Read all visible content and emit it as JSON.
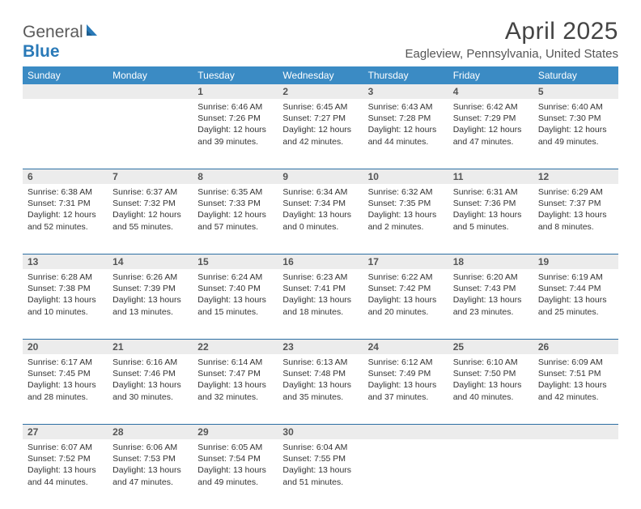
{
  "colors": {
    "header_bar": "#3b8bc4",
    "row_divider": "#2d6fa3",
    "daynum_bg": "#ececec",
    "text": "#333333",
    "title": "#444444",
    "location": "#555555",
    "logo_gray": "#5a5a5a",
    "logo_blue": "#2a7ab8"
  },
  "logo": {
    "part1": "General",
    "part2": "Blue"
  },
  "title": "April 2025",
  "location": "Eagleview, Pennsylvania, United States",
  "dow": [
    "Sunday",
    "Monday",
    "Tuesday",
    "Wednesday",
    "Thursday",
    "Friday",
    "Saturday"
  ],
  "weeks": [
    [
      null,
      null,
      {
        "n": "1",
        "sr": "Sunrise: 6:46 AM",
        "ss": "Sunset: 7:26 PM",
        "dl": "Daylight: 12 hours and 39 minutes."
      },
      {
        "n": "2",
        "sr": "Sunrise: 6:45 AM",
        "ss": "Sunset: 7:27 PM",
        "dl": "Daylight: 12 hours and 42 minutes."
      },
      {
        "n": "3",
        "sr": "Sunrise: 6:43 AM",
        "ss": "Sunset: 7:28 PM",
        "dl": "Daylight: 12 hours and 44 minutes."
      },
      {
        "n": "4",
        "sr": "Sunrise: 6:42 AM",
        "ss": "Sunset: 7:29 PM",
        "dl": "Daylight: 12 hours and 47 minutes."
      },
      {
        "n": "5",
        "sr": "Sunrise: 6:40 AM",
        "ss": "Sunset: 7:30 PM",
        "dl": "Daylight: 12 hours and 49 minutes."
      }
    ],
    [
      {
        "n": "6",
        "sr": "Sunrise: 6:38 AM",
        "ss": "Sunset: 7:31 PM",
        "dl": "Daylight: 12 hours and 52 minutes."
      },
      {
        "n": "7",
        "sr": "Sunrise: 6:37 AM",
        "ss": "Sunset: 7:32 PM",
        "dl": "Daylight: 12 hours and 55 minutes."
      },
      {
        "n": "8",
        "sr": "Sunrise: 6:35 AM",
        "ss": "Sunset: 7:33 PM",
        "dl": "Daylight: 12 hours and 57 minutes."
      },
      {
        "n": "9",
        "sr": "Sunrise: 6:34 AM",
        "ss": "Sunset: 7:34 PM",
        "dl": "Daylight: 13 hours and 0 minutes."
      },
      {
        "n": "10",
        "sr": "Sunrise: 6:32 AM",
        "ss": "Sunset: 7:35 PM",
        "dl": "Daylight: 13 hours and 2 minutes."
      },
      {
        "n": "11",
        "sr": "Sunrise: 6:31 AM",
        "ss": "Sunset: 7:36 PM",
        "dl": "Daylight: 13 hours and 5 minutes."
      },
      {
        "n": "12",
        "sr": "Sunrise: 6:29 AM",
        "ss": "Sunset: 7:37 PM",
        "dl": "Daylight: 13 hours and 8 minutes."
      }
    ],
    [
      {
        "n": "13",
        "sr": "Sunrise: 6:28 AM",
        "ss": "Sunset: 7:38 PM",
        "dl": "Daylight: 13 hours and 10 minutes."
      },
      {
        "n": "14",
        "sr": "Sunrise: 6:26 AM",
        "ss": "Sunset: 7:39 PM",
        "dl": "Daylight: 13 hours and 13 minutes."
      },
      {
        "n": "15",
        "sr": "Sunrise: 6:24 AM",
        "ss": "Sunset: 7:40 PM",
        "dl": "Daylight: 13 hours and 15 minutes."
      },
      {
        "n": "16",
        "sr": "Sunrise: 6:23 AM",
        "ss": "Sunset: 7:41 PM",
        "dl": "Daylight: 13 hours and 18 minutes."
      },
      {
        "n": "17",
        "sr": "Sunrise: 6:22 AM",
        "ss": "Sunset: 7:42 PM",
        "dl": "Daylight: 13 hours and 20 minutes."
      },
      {
        "n": "18",
        "sr": "Sunrise: 6:20 AM",
        "ss": "Sunset: 7:43 PM",
        "dl": "Daylight: 13 hours and 23 minutes."
      },
      {
        "n": "19",
        "sr": "Sunrise: 6:19 AM",
        "ss": "Sunset: 7:44 PM",
        "dl": "Daylight: 13 hours and 25 minutes."
      }
    ],
    [
      {
        "n": "20",
        "sr": "Sunrise: 6:17 AM",
        "ss": "Sunset: 7:45 PM",
        "dl": "Daylight: 13 hours and 28 minutes."
      },
      {
        "n": "21",
        "sr": "Sunrise: 6:16 AM",
        "ss": "Sunset: 7:46 PM",
        "dl": "Daylight: 13 hours and 30 minutes."
      },
      {
        "n": "22",
        "sr": "Sunrise: 6:14 AM",
        "ss": "Sunset: 7:47 PM",
        "dl": "Daylight: 13 hours and 32 minutes."
      },
      {
        "n": "23",
        "sr": "Sunrise: 6:13 AM",
        "ss": "Sunset: 7:48 PM",
        "dl": "Daylight: 13 hours and 35 minutes."
      },
      {
        "n": "24",
        "sr": "Sunrise: 6:12 AM",
        "ss": "Sunset: 7:49 PM",
        "dl": "Daylight: 13 hours and 37 minutes."
      },
      {
        "n": "25",
        "sr": "Sunrise: 6:10 AM",
        "ss": "Sunset: 7:50 PM",
        "dl": "Daylight: 13 hours and 40 minutes."
      },
      {
        "n": "26",
        "sr": "Sunrise: 6:09 AM",
        "ss": "Sunset: 7:51 PM",
        "dl": "Daylight: 13 hours and 42 minutes."
      }
    ],
    [
      {
        "n": "27",
        "sr": "Sunrise: 6:07 AM",
        "ss": "Sunset: 7:52 PM",
        "dl": "Daylight: 13 hours and 44 minutes."
      },
      {
        "n": "28",
        "sr": "Sunrise: 6:06 AM",
        "ss": "Sunset: 7:53 PM",
        "dl": "Daylight: 13 hours and 47 minutes."
      },
      {
        "n": "29",
        "sr": "Sunrise: 6:05 AM",
        "ss": "Sunset: 7:54 PM",
        "dl": "Daylight: 13 hours and 49 minutes."
      },
      {
        "n": "30",
        "sr": "Sunrise: 6:04 AM",
        "ss": "Sunset: 7:55 PM",
        "dl": "Daylight: 13 hours and 51 minutes."
      },
      null,
      null,
      null
    ]
  ]
}
